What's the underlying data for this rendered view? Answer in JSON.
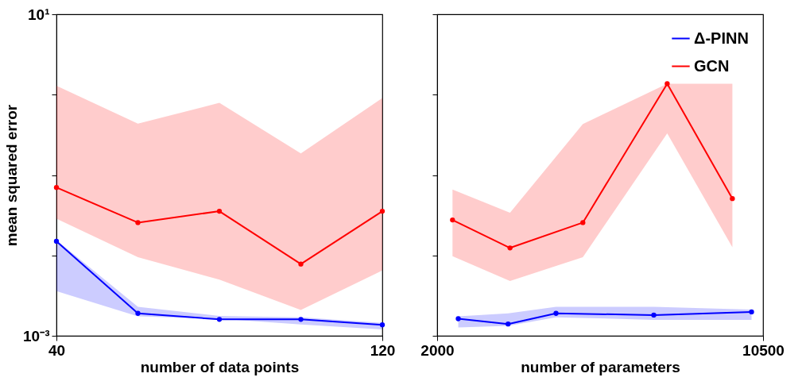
{
  "chart_data": [
    {
      "type": "line",
      "xlabel": "number of data points",
      "ylabel": "mean squared error",
      "log": "y",
      "grid": false,
      "marker": "circle",
      "line_style": "solid",
      "legend": false,
      "xlim": [
        40,
        120
      ],
      "xticks": [
        40,
        120
      ],
      "ylim": [
        0.001,
        10
      ],
      "yticks": [
        {
          "value": 10,
          "label": "10¹"
        },
        {
          "value": 1,
          "label": null
        },
        {
          "value": 0.1,
          "label": null
        },
        {
          "value": 0.01,
          "label": null
        },
        {
          "value": 0.001,
          "label": "10⁻³"
        }
      ],
      "series": [
        {
          "color": "#0000ff",
          "x": [
            40,
            60,
            80,
            100,
            120
          ],
          "values": [
            0.015,
            0.0019,
            0.0016,
            0.0016,
            0.00137
          ],
          "lower": [
            0.0036,
            0.00175,
            0.00163,
            0.00138,
            0.0012
          ],
          "upper": [
            0.0155,
            0.0023,
            0.00177,
            0.0017,
            0.00145
          ]
        },
        {
          "color": "#ff0000",
          "x": [
            40,
            60,
            80,
            100,
            120
          ],
          "values": [
            0.07,
            0.0256,
            0.0355,
            0.0078,
            0.0355
          ],
          "lower": [
            0.0286,
            0.0095,
            0.005,
            0.0021,
            0.0065
          ],
          "upper": [
            1.29,
            0.435,
            0.79,
            0.186,
            0.91
          ]
        }
      ]
    },
    {
      "type": "line",
      "xlabel": "number of parameters",
      "log": "y",
      "grid": false,
      "marker": "circle",
      "line_style": "solid",
      "legend": "top right",
      "tick_labels": "x",
      "xlim": [
        2000,
        10500
      ],
      "xticks": [
        2000,
        10500
      ],
      "ylim": [
        0.001,
        10
      ],
      "yticks": [
        {
          "value": 10,
          "label": null
        },
        {
          "value": 1,
          "label": null
        },
        {
          "value": 0.1,
          "label": null
        },
        {
          "value": 0.01,
          "label": null
        },
        {
          "value": 0.001,
          "label": null
        }
      ],
      "series": [
        {
          "name": "Δ-PINN",
          "color": "#0000ff",
          "x": [
            2550,
            3850,
            5100,
            7650,
            10200
          ],
          "values": [
            0.00163,
            0.0014,
            0.0019,
            0.00181,
            0.00198
          ],
          "lower": [
            0.00127,
            0.00133,
            0.0017,
            0.00158,
            0.00158
          ],
          "upper": [
            0.00175,
            0.0019,
            0.0023,
            0.0023,
            0.00212
          ]
        },
        {
          "name": "GCN",
          "color": "#ff0000",
          "x": [
            2400,
            3900,
            5800,
            8000,
            9700
          ],
          "values": [
            0.0276,
            0.0124,
            0.0256,
            1.37,
            0.0509
          ],
          "lower": [
            0.0098,
            0.0048,
            0.0095,
            0.33,
            0.0126
          ],
          "upper": [
            0.066,
            0.034,
            0.43,
            1.37,
            1.37
          ]
        }
      ]
    }
  ]
}
